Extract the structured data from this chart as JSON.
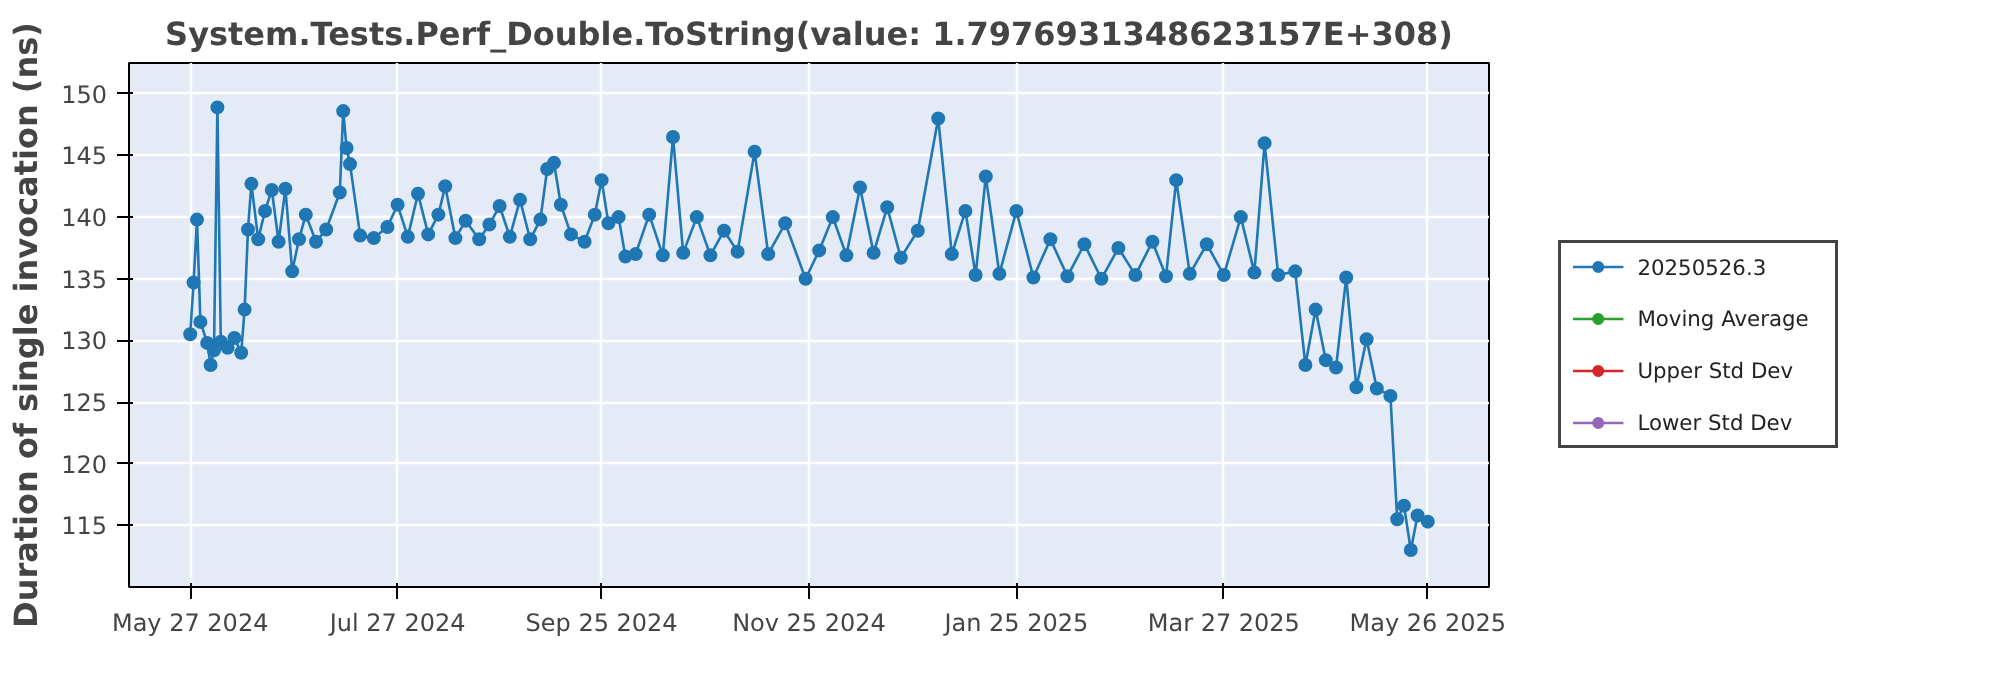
{
  "chart_data": {
    "type": "line",
    "title": "System.Tests.Perf_Double.ToString(value: 1.7976931348623157E+308)",
    "ylabel": "Duration of single invocation (ns)",
    "xlim": [
      "2024-05-09",
      "2025-06-13"
    ],
    "xticks": [
      {
        "value": "2024-05-27",
        "label": "May 27 2024"
      },
      {
        "value": "2024-07-27",
        "label": "Jul 27 2024"
      },
      {
        "value": "2024-09-25",
        "label": "Sep 25 2024"
      },
      {
        "value": "2024-11-25",
        "label": "Nov 25 2024"
      },
      {
        "value": "2025-01-25",
        "label": "Jan 25 2025"
      },
      {
        "value": "2025-03-27",
        "label": "Mar 27 2025"
      },
      {
        "value": "2025-05-26",
        "label": "May 26 2025"
      }
    ],
    "ylim": [
      110,
      152.5
    ],
    "yticks": [
      115,
      120,
      125,
      130,
      135,
      140,
      145,
      150
    ],
    "grid": true,
    "legend": "right",
    "marker": "circle",
    "line_style": "solid",
    "series": [
      {
        "name": "20250526.3",
        "color": "#1f77b4",
        "x": [
          "2024-05-27",
          "2024-05-28",
          "2024-05-29",
          "2024-05-30",
          "2024-06-01",
          "2024-06-02",
          "2024-06-03",
          "2024-06-04",
          "2024-06-05",
          "2024-06-07",
          "2024-06-09",
          "2024-06-11",
          "2024-06-12",
          "2024-06-13",
          "2024-06-14",
          "2024-06-16",
          "2024-06-18",
          "2024-06-20",
          "2024-06-22",
          "2024-06-24",
          "2024-06-26",
          "2024-06-28",
          "2024-06-30",
          "2024-07-03",
          "2024-07-06",
          "2024-07-10",
          "2024-07-11",
          "2024-07-12",
          "2024-07-13",
          "2024-07-16",
          "2024-07-20",
          "2024-07-24",
          "2024-07-27",
          "2024-07-30",
          "2024-08-02",
          "2024-08-05",
          "2024-08-08",
          "2024-08-10",
          "2024-08-13",
          "2024-08-16",
          "2024-08-20",
          "2024-08-23",
          "2024-08-26",
          "2024-08-29",
          "2024-09-01",
          "2024-09-04",
          "2024-09-07",
          "2024-09-09",
          "2024-09-11",
          "2024-09-13",
          "2024-09-16",
          "2024-09-20",
          "2024-09-23",
          "2024-09-25",
          "2024-09-27",
          "2024-09-30",
          "2024-10-02",
          "2024-10-05",
          "2024-10-09",
          "2024-10-13",
          "2024-10-16",
          "2024-10-19",
          "2024-10-23",
          "2024-10-27",
          "2024-10-31",
          "2024-11-04",
          "2024-11-09",
          "2024-11-13",
          "2024-11-18",
          "2024-11-24",
          "2024-11-28",
          "2024-12-02",
          "2024-12-06",
          "2024-12-10",
          "2024-12-14",
          "2024-12-18",
          "2024-12-22",
          "2024-12-27",
          "2025-01-02",
          "2025-01-06",
          "2025-01-10",
          "2025-01-13",
          "2025-01-16",
          "2025-01-20",
          "2025-01-25",
          "2025-01-30",
          "2025-02-04",
          "2025-02-09",
          "2025-02-14",
          "2025-02-19",
          "2025-02-24",
          "2025-03-01",
          "2025-03-06",
          "2025-03-10",
          "2025-03-13",
          "2025-03-17",
          "2025-03-22",
          "2025-03-27",
          "2025-04-01",
          "2025-04-05",
          "2025-04-08",
          "2025-04-12",
          "2025-04-17",
          "2025-04-20",
          "2025-04-23",
          "2025-04-26",
          "2025-04-29",
          "2025-05-02",
          "2025-05-05",
          "2025-05-08",
          "2025-05-11",
          "2025-05-15",
          "2025-05-17",
          "2025-05-19",
          "2025-05-21",
          "2025-05-23",
          "2025-05-26"
        ],
        "values": [
          130.5,
          134.7,
          139.8,
          131.5,
          129.8,
          128.0,
          129.2,
          148.9,
          129.9,
          129.4,
          130.2,
          129.0,
          132.5,
          139.0,
          142.7,
          138.2,
          140.5,
          142.2,
          138.0,
          142.3,
          135.6,
          138.2,
          140.2,
          138.0,
          139.0,
          142.0,
          148.6,
          145.6,
          144.3,
          138.5,
          138.3,
          139.2,
          141.0,
          138.4,
          141.9,
          138.6,
          140.2,
          142.5,
          138.3,
          139.7,
          138.2,
          139.4,
          140.9,
          138.4,
          141.4,
          138.2,
          139.8,
          143.9,
          144.4,
          141.0,
          138.6,
          138.0,
          140.2,
          143.0,
          139.5,
          140.0,
          136.8,
          137.0,
          140.2,
          136.9,
          146.5,
          137.1,
          140.0,
          136.9,
          138.9,
          137.2,
          145.3,
          137.0,
          139.5,
          135.0,
          137.3,
          140.0,
          136.9,
          142.4,
          137.1,
          140.8,
          136.7,
          138.9,
          148.0,
          137.0,
          140.5,
          135.3,
          143.3,
          135.4,
          140.5,
          135.1,
          138.2,
          135.2,
          137.8,
          135.0,
          137.5,
          135.3,
          138.0,
          135.2,
          143.0,
          135.4,
          137.8,
          135.3,
          140.0,
          135.5,
          146.0,
          135.3,
          135.6,
          128.0,
          132.5,
          128.4,
          127.8,
          135.1,
          126.2,
          130.1,
          126.1,
          125.5,
          115.5,
          116.6,
          113.0,
          115.8,
          115.3
        ]
      },
      {
        "name": "Moving Average",
        "color": "#2ca02c"
      },
      {
        "name": "Upper Std Dev",
        "color": "#d62728"
      },
      {
        "name": "Lower Std Dev",
        "color": "#9467bd"
      }
    ]
  }
}
